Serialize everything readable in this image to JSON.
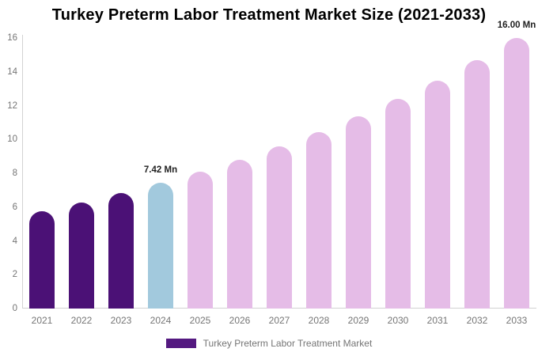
{
  "chart_data": {
    "type": "bar",
    "title": "Turkey Preterm Labor Treatment Market Size (2021-2033)",
    "categories": [
      "2021",
      "2022",
      "2023",
      "2024",
      "2025",
      "2026",
      "2027",
      "2028",
      "2029",
      "2030",
      "2031",
      "2032",
      "2033"
    ],
    "series": [
      {
        "name": "Turkey Preterm Labor Treatment Market",
        "values": [
          5.74,
          6.25,
          6.81,
          7.42,
          8.08,
          8.8,
          9.59,
          10.44,
          11.37,
          12.38,
          13.49,
          14.69,
          16.0
        ]
      }
    ],
    "unit": "Mn",
    "xlabel": "",
    "ylabel": "",
    "ylim": [
      0,
      16
    ],
    "yticks": [
      0,
      2,
      4,
      6,
      8,
      10,
      12,
      14,
      16
    ],
    "grid": false,
    "legend_position": "bottom",
    "bar_colors": [
      "#4b1176",
      "#4b1176",
      "#4b1176",
      "#a2c9dd",
      "#e5bce7",
      "#e5bce7",
      "#e5bce7",
      "#e5bce7",
      "#e5bce7",
      "#e5bce7",
      "#e5bce7",
      "#e5bce7",
      "#e5bce7"
    ],
    "annotations": [
      {
        "category": "2024",
        "text": "7.42 Mn"
      },
      {
        "category": "2033",
        "text": "16.00 Mn"
      }
    ],
    "colors": {
      "historical_bar": "#4b1176",
      "base_year_bar": "#a2c9dd",
      "forecast_bar": "#e5bce7",
      "legend_swatch": "#541980",
      "axis_line": "#d2d2d2",
      "tick_text": "#757575",
      "annotation_text": "#1f1f1f",
      "title_text": "#000000"
    }
  },
  "legend": {
    "label": "Turkey Preterm Labor Treatment Market"
  }
}
